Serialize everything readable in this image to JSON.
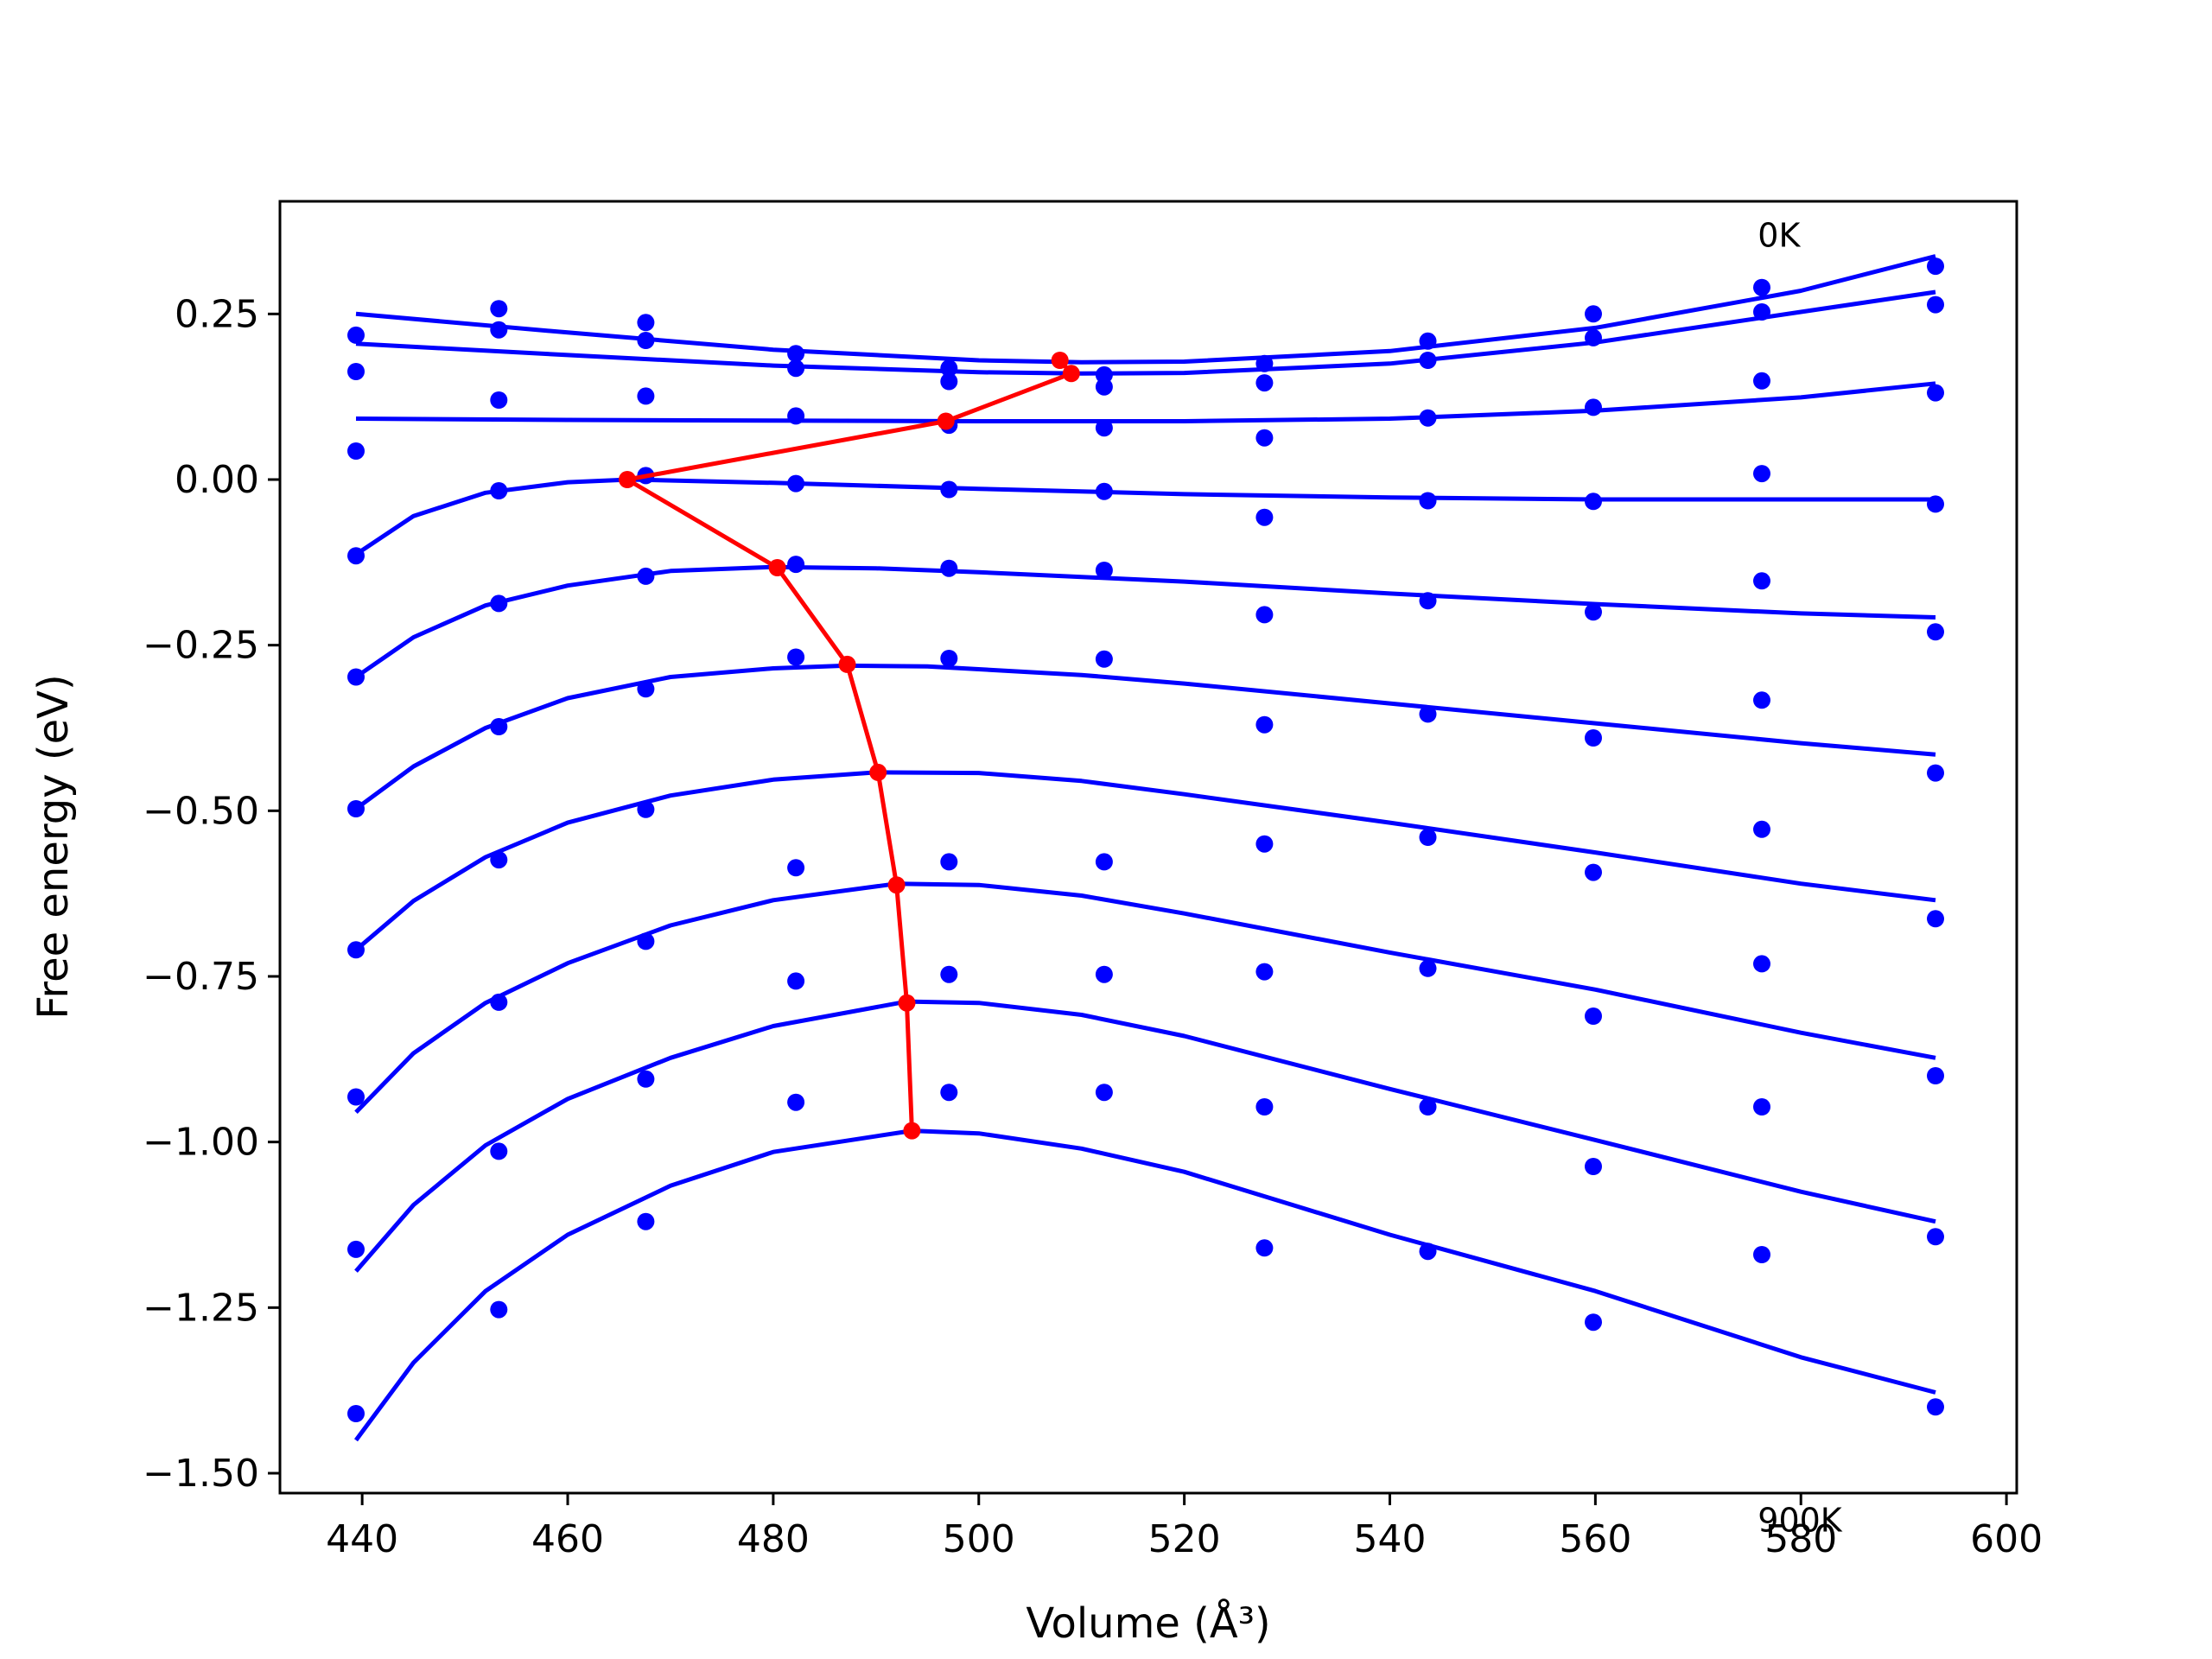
{
  "chart_data": {
    "type": "line",
    "xlabel": "Volume (Å³)",
    "ylabel": "Free energy (eV)",
    "xlim": [
      432,
      601
    ],
    "ylim": [
      -1.53,
      0.42
    ],
    "xticks": [
      440,
      460,
      480,
      500,
      520,
      540,
      560,
      580,
      600
    ],
    "xtick_labels": [
      "440",
      "460",
      "480",
      "500",
      "520",
      "540",
      "560",
      "580",
      "600"
    ],
    "yticks": [
      0.25,
      0.0,
      -0.25,
      -0.5,
      -0.75,
      -1.0,
      -1.25,
      -1.5
    ],
    "ytick_labels": [
      "0.25",
      "0.00",
      "−0.25",
      "−0.50",
      "−0.75",
      "−1.00",
      "−1.25",
      "−1.50"
    ],
    "annotations": [
      {
        "text": "0K",
        "x": 575.8,
        "y": 0.37
      },
      {
        "text": "900K",
        "x": 575.8,
        "y": -1.57
      }
    ],
    "grid": false,
    "colors": {
      "fit": "#0000ff",
      "points": "#0000ff",
      "minima": "#ff0000"
    },
    "volumes": [
      439.4,
      453.3,
      467.6,
      482.2,
      497.1,
      512.2,
      527.8,
      543.7,
      559.8,
      576.2,
      593.1
    ],
    "fit_curves": [
      {
        "x": [
          439.4,
          460,
          480,
          500,
          510,
          520,
          540,
          560,
          580,
          593.1
        ],
        "y": [
          0.25,
          0.222,
          0.196,
          0.18,
          0.177,
          0.178,
          0.194,
          0.229,
          0.285,
          0.337
        ]
      },
      {
        "x": [
          439.4,
          460,
          480,
          500,
          510,
          520,
          540,
          560,
          580,
          593.1
        ],
        "y": [
          0.205,
          0.188,
          0.172,
          0.162,
          0.16,
          0.161,
          0.175,
          0.207,
          0.253,
          0.283
        ]
      },
      {
        "x": [
          439.4,
          460,
          480,
          500,
          520,
          540,
          560,
          580,
          593.1
        ],
        "y": [
          0.092,
          0.09,
          0.089,
          0.088,
          0.088,
          0.092,
          0.104,
          0.124,
          0.145
        ]
      },
      {
        "x": [
          439.4,
          445,
          452,
          460,
          466,
          480,
          500,
          520,
          540,
          560,
          580,
          593.1
        ],
        "y": [
          -0.113,
          -0.055,
          -0.02,
          -0.004,
          0.0,
          -0.005,
          -0.014,
          -0.022,
          -0.027,
          -0.03,
          -0.03,
          -0.03
        ]
      },
      {
        "x": [
          439.4,
          445,
          452,
          460,
          470,
          480,
          490,
          500,
          520,
          540,
          560,
          580,
          593.1
        ],
        "y": [
          -0.298,
          -0.238,
          -0.19,
          -0.16,
          -0.138,
          -0.132,
          -0.134,
          -0.14,
          -0.154,
          -0.172,
          -0.188,
          -0.202,
          -0.208
        ]
      },
      {
        "x": [
          439.4,
          445,
          452,
          460,
          470,
          480,
          487,
          495,
          510,
          520,
          540,
          560,
          580,
          593.1
        ],
        "y": [
          -0.497,
          -0.433,
          -0.375,
          -0.33,
          -0.298,
          -0.285,
          -0.281,
          -0.282,
          -0.295,
          -0.308,
          -0.338,
          -0.368,
          -0.398,
          -0.415
        ]
      },
      {
        "x": [
          439.4,
          445,
          452,
          460,
          470,
          480,
          490,
          500,
          510,
          520,
          540,
          560,
          580,
          593.1
        ],
        "y": [
          -0.71,
          -0.636,
          -0.57,
          -0.518,
          -0.477,
          -0.453,
          -0.442,
          -0.443,
          -0.455,
          -0.475,
          -0.518,
          -0.563,
          -0.61,
          -0.635
        ]
      },
      {
        "x": [
          439.4,
          445,
          452,
          460,
          470,
          480,
          492,
          500,
          510,
          520,
          540,
          560,
          580,
          593.1
        ],
        "y": [
          -0.955,
          -0.866,
          -0.79,
          -0.73,
          -0.673,
          -0.635,
          -0.61,
          -0.612,
          -0.628,
          -0.655,
          -0.714,
          -0.77,
          -0.835,
          -0.873
        ]
      },
      {
        "x": [
          439.4,
          445,
          452,
          460,
          470,
          480,
          493,
          500,
          510,
          520,
          540,
          560,
          580,
          593.1
        ],
        "y": [
          -1.195,
          -1.095,
          -1.005,
          -0.935,
          -0.873,
          -0.825,
          -0.788,
          -0.79,
          -0.808,
          -0.84,
          -0.92,
          -0.997,
          -1.075,
          -1.12
        ]
      },
      {
        "x": [
          439.4,
          445,
          452,
          460,
          470,
          480,
          493.5,
          500,
          510,
          520,
          540,
          560,
          580,
          593.1
        ],
        "y": [
          -1.45,
          -1.333,
          -1.225,
          -1.14,
          -1.066,
          -1.015,
          -0.983,
          -0.987,
          -1.01,
          -1.045,
          -1.14,
          -1.225,
          -1.325,
          -1.378
        ]
      }
    ],
    "data_points": [
      [
        0.218,
        0.258,
        0.237,
        0.19,
        0.168,
        0.158,
        0.175,
        0.209,
        0.25,
        0.29,
        0.322
      ],
      [
        0.163,
        0.226,
        0.21,
        0.168,
        0.148,
        0.14,
        0.146,
        0.18,
        0.214,
        0.253,
        0.264
      ],
      [
        0.043,
        0.12,
        0.126,
        0.096,
        0.082,
        0.078,
        0.063,
        0.093,
        0.109,
        0.149,
        0.131
      ],
      [
        -0.115,
        -0.017,
        0.006,
        -0.006,
        -0.015,
        -0.018,
        -0.057,
        -0.032,
        -0.033,
        0.009,
        -0.037
      ],
      [
        -0.298,
        -0.187,
        -0.146,
        -0.128,
        -0.134,
        -0.137,
        -0.204,
        -0.183,
        -0.2,
        -0.153,
        -0.23
      ],
      [
        -0.497,
        -0.373,
        -0.316,
        -0.268,
        -0.27,
        -0.271,
        -0.37,
        -0.354,
        -0.39,
        -0.333,
        -0.443
      ],
      [
        -0.71,
        -0.574,
        -0.498,
        -0.586,
        -0.577,
        -0.577,
        -0.55,
        -0.54,
        -0.593,
        -0.528,
        -0.663
      ],
      [
        -0.932,
        -0.789,
        -0.697,
        -0.757,
        -0.747,
        -0.747,
        -0.743,
        -0.738,
        -0.81,
        -0.731,
        -0.9
      ],
      [
        -1.162,
        -1.014,
        -0.905,
        -0.94,
        -0.925,
        -0.925,
        -0.947,
        -0.947,
        -1.037,
        -0.947,
        -1.143
      ],
      [
        -1.41,
        -1.253,
        -1.12,
        null,
        null,
        null,
        -1.16,
        -1.165,
        -1.272,
        -1.17,
        -1.4
      ]
    ],
    "minima_path": {
      "x": [
        507.9,
        509.0,
        496.8,
        465.8,
        480.4,
        487.2,
        490.2,
        492.0,
        493.0,
        493.5
      ],
      "y": [
        0.18,
        0.16,
        0.088,
        0.0,
        -0.133,
        -0.279,
        -0.442,
        -0.612,
        -0.79,
        -0.983
      ]
    }
  }
}
